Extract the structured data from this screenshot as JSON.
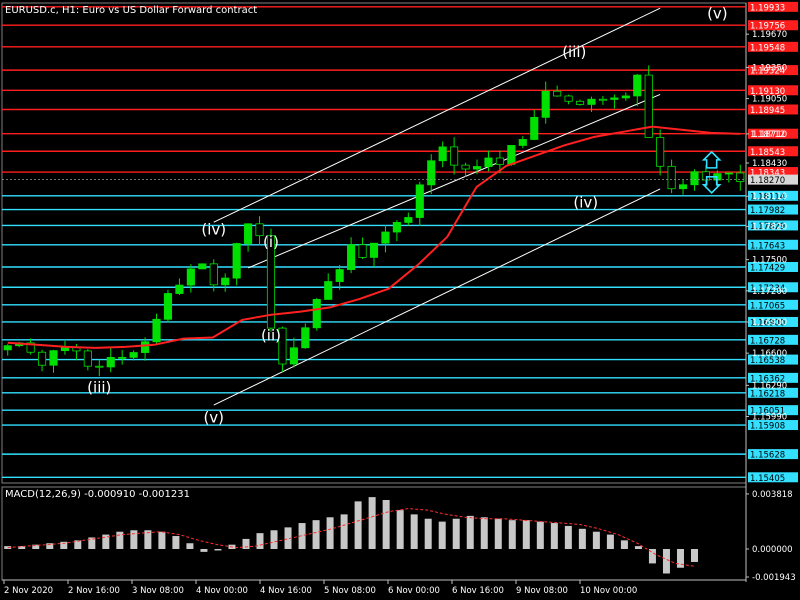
{
  "header": {
    "title": "EURUSD.c, H1:  Euro vs US Dollar Forward contract"
  },
  "colors": {
    "background": "#000000",
    "candle": "#00e000",
    "resistance": "#ff1e1e",
    "support": "#33e0ff",
    "ma": "#ff2020",
    "channel": "#ffffff",
    "macd_hist": "#c8c8c8",
    "macd_signal": "#ff3030"
  },
  "chart_data": [
    {
      "type": "candlestick",
      "symbol": "EURUSD.c",
      "timeframe": "H1",
      "ylim": [
        1.1535,
        1.1997
      ],
      "x_ticks": [
        "2 Nov 2020",
        "2 Nov 16:00",
        "3 Nov 08:00",
        "4 Nov 00:00",
        "4 Nov 16:00",
        "5 Nov 08:00",
        "6 Nov 00:00",
        "6 Nov 16:00",
        "9 Nov 08:00",
        "10 Nov 00:00"
      ],
      "y_ticks": [
        "1.19670",
        "1.19350",
        "1.19050",
        "1.18710",
        "1.18430",
        "1.18110",
        "1.17820",
        "1.17500",
        "1.17200",
        "1.16900",
        "1.16600",
        "1.16290",
        "1.15990"
      ],
      "current_price": "1.18270",
      "price_path": [
        1.1672,
        1.1664,
        1.1648,
        1.1668,
        1.1672,
        1.165,
        1.164,
        1.1654,
        1.166,
        1.167,
        1.169,
        1.172,
        1.174,
        1.1752,
        1.1722,
        1.1748,
        1.179,
        1.1764,
        1.1638,
        1.1655,
        1.169,
        1.172,
        1.174,
        1.176,
        1.1752,
        1.1768,
        1.178,
        1.18,
        1.183,
        1.1862,
        1.1843,
        1.183,
        1.1852,
        1.1845,
        1.1858,
        1.188,
        1.191,
        1.1905,
        1.19,
        1.1903,
        1.1907,
        1.19,
        1.1935,
        1.1864,
        1.1825,
        1.1818,
        1.183,
        1.1828,
        1.1835,
        1.183
      ],
      "moving_average": [
        1.167,
        1.1668,
        1.1666,
        1.1665,
        1.1666,
        1.1668,
        1.1674,
        1.1675,
        1.1692,
        1.1697,
        1.17,
        1.1704,
        1.1712,
        1.1722,
        1.1745,
        1.1772,
        1.182,
        1.184,
        1.185,
        1.186,
        1.1868,
        1.1873,
        1.1878,
        1.1875,
        1.1872,
        1.1871
      ],
      "resistance_levels": [
        "1.19933",
        "1.19756",
        "1.19548",
        "1.19324",
        "1.19130",
        "1.18945",
        "1.18712",
        "1.18543",
        "1.18343"
      ],
      "support_levels": [
        "1.18114",
        "1.17982",
        "1.17829",
        "1.17643",
        "1.17429",
        "1.17234",
        "1.17065",
        "1.16900",
        "1.16728",
        "1.16538",
        "1.16362",
        "1.16218",
        "1.16051",
        "1.15908",
        "1.15628",
        "1.15405"
      ],
      "wave_labels": [
        {
          "text": "(iii)",
          "x": 8,
          "y": 1.1622
        },
        {
          "text": "(iv)",
          "x": 18,
          "y": 1.1774
        },
        {
          "text": "(v)",
          "x": 18,
          "y": 1.1593
        },
        {
          "text": "(i)",
          "x": 23,
          "y": 1.1762
        },
        {
          "text": "(ii)",
          "x": 23,
          "y": 1.1672
        },
        {
          "text": "(iii)",
          "x": 49.5,
          "y": 1.1945
        },
        {
          "text": "(iv)",
          "x": 50.5,
          "y": 1.18
        },
        {
          "text": "(v)",
          "x": 62,
          "y": 1.1982
        }
      ],
      "channel": {
        "upper": [
          [
            18,
            1.1786
          ],
          [
            57,
            1.1992
          ]
        ],
        "middle": [
          [
            21,
            1.1742
          ],
          [
            57,
            1.1909
          ]
        ],
        "lower": [
          [
            18,
            1.161
          ],
          [
            57,
            1.1818
          ]
        ]
      }
    },
    {
      "type": "bar",
      "title": "MACD(12,26,9) -0.000910 -0.001231",
      "ylim": [
        -0.00215,
        0.0043
      ],
      "y_ticks": [
        "0.003818",
        "0.000000",
        "-0.001943"
      ],
      "histogram": [
        0.0002,
        0.0002,
        0.0003,
        0.0004,
        0.0005,
        0.0006,
        0.0008,
        0.001,
        0.0012,
        0.0013,
        0.0013,
        0.0012,
        0.0009,
        0.0004,
        -0.0002,
        -0.0001,
        0.0003,
        0.0007,
        0.0011,
        0.0013,
        0.0015,
        0.0018,
        0.002,
        0.0022,
        0.0024,
        0.0033,
        0.0036,
        0.0034,
        0.0027,
        0.0024,
        0.0021,
        0.0019,
        0.0021,
        0.0023,
        0.0022,
        0.0021,
        0.002,
        0.002,
        0.0019,
        0.0018,
        0.0016,
        0.0014,
        0.0012,
        0.001,
        0.0006,
        0.0002,
        -0.001,
        -0.0017,
        -0.0013,
        -0.0009
      ],
      "signal": [
        0.0001,
        0.0002,
        0.0003,
        0.0004,
        0.0006,
        0.0008,
        0.001,
        0.0011,
        0.0012,
        0.001,
        0.0006,
        0.0003,
        0.0001,
        0.0002,
        0.0005,
        0.0008,
        0.0011,
        0.0014,
        0.0018,
        0.0022,
        0.0026,
        0.0028,
        0.0027,
        0.0024,
        0.0022,
        0.0021,
        0.0021,
        0.002,
        0.0019,
        0.0018,
        0.0017,
        0.0014,
        0.001,
        0.0004,
        -0.0004,
        -0.001,
        -0.0012
      ]
    }
  ]
}
